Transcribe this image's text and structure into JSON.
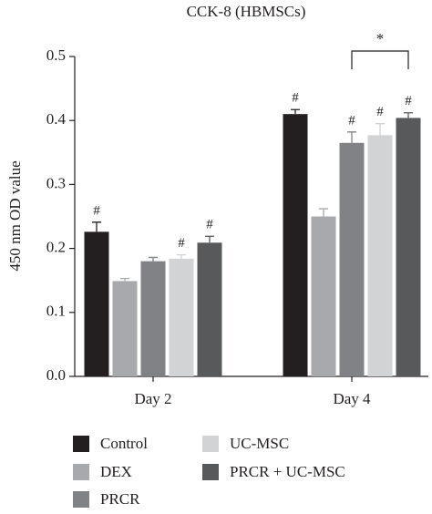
{
  "chart_data": {
    "type": "bar",
    "title": "CCK-8 (HBMSCs)",
    "y_label": "450 nm OD value",
    "categories": [
      "Day 2",
      "Day 4"
    ],
    "ylim": [
      0,
      0.5
    ],
    "yticks": [
      {
        "value": 0,
        "label": "0.0"
      },
      0.1,
      0.2,
      0.3,
      0.4,
      0.5
    ],
    "series": [
      {
        "name": "Control",
        "color": "#231f20",
        "values": [
          0.226,
          0.41
        ],
        "errors": [
          0.015,
          0.007
        ],
        "annotations": [
          "#",
          "#"
        ]
      },
      {
        "name": "DEX",
        "color": "#a7a9ac",
        "values": [
          0.149,
          0.25
        ],
        "errors": [
          0.004,
          0.012
        ],
        "annotations": [
          null,
          null
        ]
      },
      {
        "name": "PRCR",
        "color": "#808285",
        "values": [
          0.18,
          0.365
        ],
        "errors": [
          0.006,
          0.017
        ],
        "annotations": [
          null,
          "#"
        ]
      },
      {
        "name": "UC-MSC",
        "color": "#d1d3d4",
        "values": [
          0.184,
          0.377
        ],
        "errors": [
          0.006,
          0.018
        ],
        "annotations": [
          "#",
          "#"
        ]
      },
      {
        "name": "PRCR + UC-MSC",
        "color": "#58595b",
        "values": [
          0.209,
          0.404
        ],
        "errors": [
          0.01,
          0.008
        ],
        "annotations": [
          "#",
          "#"
        ]
      }
    ],
    "bracket_label": "*"
  }
}
